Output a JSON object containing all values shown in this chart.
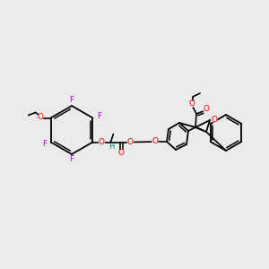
{
  "background_color": "#ebebeb",
  "bond_color": "#000000",
  "atom_colors": {
    "F": "#cc00cc",
    "O": "#ff0000",
    "H": "#008080",
    "C": "#000000"
  },
  "figsize": [
    3.0,
    3.0
  ],
  "dpi": 100
}
